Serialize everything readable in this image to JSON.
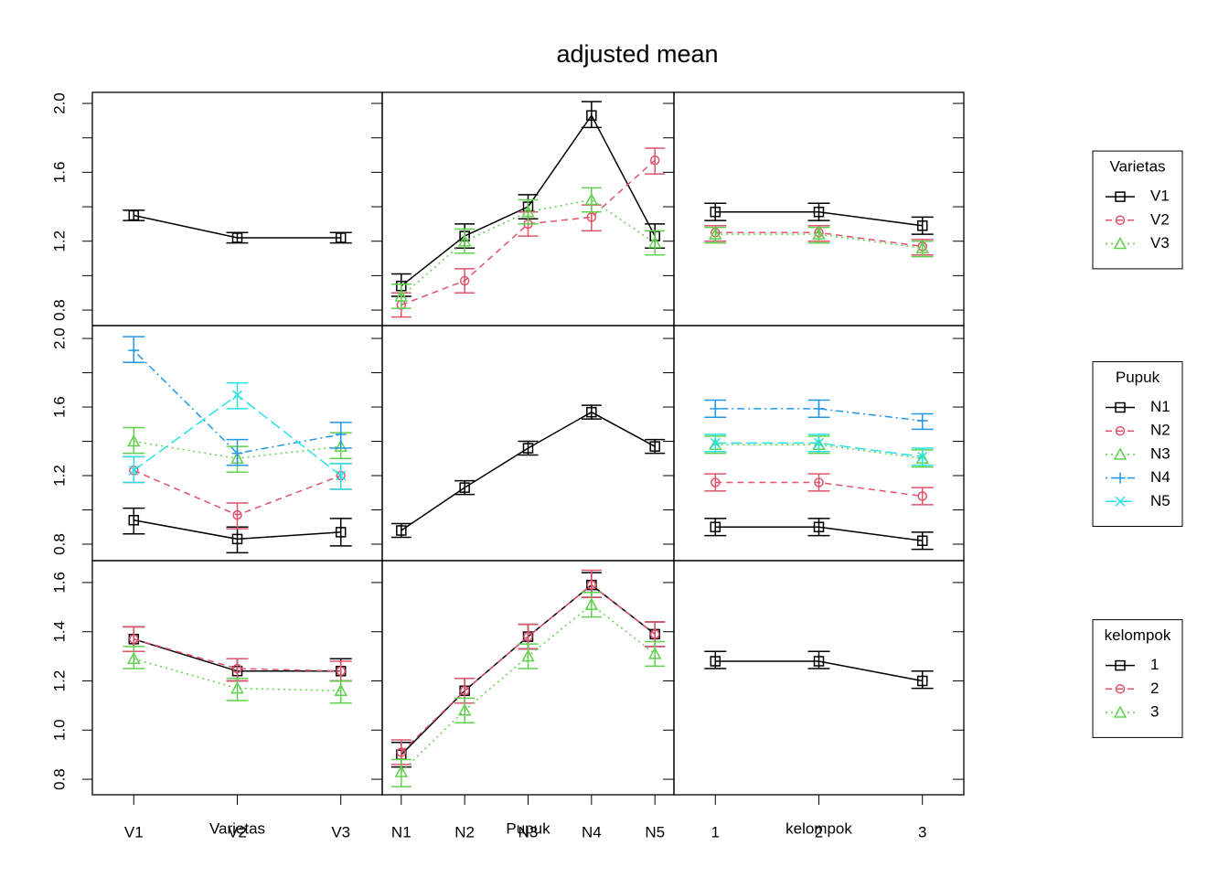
{
  "chart_data": {
    "type": "interaction-matrix",
    "title": "adjusted mean",
    "colors": [
      "#000000",
      "#DF536B",
      "#61D04F",
      "#2297E6",
      "#28E2E5"
    ],
    "factors": [
      {
        "name": "Varietas",
        "levels": [
          "V1",
          "V2",
          "V3"
        ]
      },
      {
        "name": "Pupuk",
        "levels": [
          "N1",
          "N2",
          "N3",
          "N4",
          "N5"
        ]
      },
      {
        "name": "kelompok",
        "levels": [
          "1",
          "2",
          "3"
        ]
      }
    ],
    "rows": [
      {
        "ylim": [
          0.71,
          2.064
        ],
        "yticks": [
          0.8,
          1.2,
          1.6,
          {
            "value": 2,
            "label": "2.0"
          }
        ],
        "minor_yticks": [
          1,
          1.4,
          1.8
        ],
        "panels": [
          {
            "series": [
              {
                "values": [
                  1.35,
                  1.22,
                  1.22
                ],
                "lower": [
                  1.32,
                  1.19,
                  1.19
                ],
                "upper": [
                  1.38,
                  1.25,
                  1.25
                ]
              }
            ]
          },
          {
            "series": [
              {
                "values": [
                  0.94,
                  1.23,
                  1.4,
                  1.93,
                  1.23
                ],
                "lower": [
                  0.88,
                  1.16,
                  1.33,
                  1.86,
                  1.16
                ],
                "upper": [
                  1.01,
                  1.3,
                  1.47,
                  2.01,
                  1.3
                ]
              },
              {
                "values": [
                  0.83,
                  0.97,
                  1.3,
                  1.34,
                  1.67
                ],
                "lower": [
                  0.76,
                  0.9,
                  1.23,
                  1.26,
                  1.59
                ],
                "upper": [
                  0.9,
                  1.04,
                  1.37,
                  1.41,
                  1.74
                ]
              },
              {
                "values": [
                  0.88,
                  1.2,
                  1.37,
                  1.44,
                  1.19
                ],
                "lower": [
                  0.81,
                  1.13,
                  1.3,
                  1.37,
                  1.12
                ],
                "upper": [
                  0.95,
                  1.27,
                  1.44,
                  1.51,
                  1.26
                ]
              }
            ]
          },
          {
            "series": [
              {
                "values": [
                  1.37,
                  1.37,
                  1.29
                ],
                "lower": [
                  1.32,
                  1.32,
                  1.24
                ],
                "upper": [
                  1.42,
                  1.42,
                  1.34
                ]
              },
              {
                "values": [
                  1.25,
                  1.25,
                  1.17
                ],
                "lower": [
                  1.2,
                  1.2,
                  1.12
                ],
                "upper": [
                  1.29,
                  1.29,
                  1.21
                ]
              },
              {
                "values": [
                  1.24,
                  1.24,
                  1.16
                ],
                "lower": [
                  1.19,
                  1.19,
                  1.11
                ],
                "upper": [
                  1.28,
                  1.28,
                  1.2
                ]
              }
            ]
          }
        ]
      },
      {
        "ylim": [
          0.704,
          2.075
        ],
        "yticks": [
          0.8,
          1.2,
          1.6,
          {
            "value": 2,
            "label": "2.0"
          }
        ],
        "minor_yticks": [
          1,
          1.4,
          1.8
        ],
        "panels": [
          {
            "series": [
              {
                "values": [
                  0.94,
                  0.83,
                  0.87
                ],
                "lower": [
                  0.86,
                  0.75,
                  0.79
                ],
                "upper": [
                  1.01,
                  0.9,
                  0.95
                ]
              },
              {
                "values": [
                  1.23,
                  0.97,
                  1.2
                ],
                "lower": [
                  1.16,
                  0.89,
                  1.12
                ],
                "upper": [
                  1.31,
                  1.04,
                  1.27
                ]
              },
              {
                "values": [
                  1.4,
                  1.3,
                  1.37
                ],
                "lower": [
                  1.33,
                  1.22,
                  1.3
                ],
                "upper": [
                  1.48,
                  1.37,
                  1.45
                ]
              },
              {
                "values": [
                  1.93,
                  1.33,
                  1.44
                ],
                "lower": [
                  1.86,
                  1.26,
                  1.36
                ],
                "upper": [
                  2.01,
                  1.41,
                  1.51
                ]
              },
              {
                "values": [
                  1.23,
                  1.67,
                  1.2
                ],
                "lower": [
                  1.16,
                  1.59,
                  1.12
                ],
                "upper": [
                  1.31,
                  1.74,
                  1.27
                ]
              }
            ]
          },
          {
            "series": [
              {
                "values": [
                  0.88,
                  1.13,
                  1.36,
                  1.57,
                  1.37
                ],
                "lower": [
                  0.84,
                  1.09,
                  1.32,
                  1.53,
                  1.33
                ],
                "upper": [
                  0.92,
                  1.17,
                  1.4,
                  1.61,
                  1.41
                ]
              }
            ]
          },
          {
            "series": [
              {
                "values": [
                  0.9,
                  0.9,
                  0.82
                ],
                "lower": [
                  0.85,
                  0.85,
                  0.77
                ],
                "upper": [
                  0.95,
                  0.95,
                  0.87
                ]
              },
              {
                "values": [
                  1.16,
                  1.16,
                  1.08
                ],
                "lower": [
                  1.11,
                  1.11,
                  1.03
                ],
                "upper": [
                  1.21,
                  1.21,
                  1.13
                ]
              },
              {
                "values": [
                  1.38,
                  1.38,
                  1.3
                ],
                "lower": [
                  1.33,
                  1.33,
                  1.25
                ],
                "upper": [
                  1.43,
                  1.43,
                  1.35
                ]
              },
              {
                "values": [
                  1.59,
                  1.59,
                  1.52
                ],
                "lower": [
                  1.54,
                  1.54,
                  1.47
                ],
                "upper": [
                  1.64,
                  1.64,
                  1.56
                ]
              },
              {
                "values": [
                  1.39,
                  1.39,
                  1.31
                ],
                "lower": [
                  1.34,
                  1.34,
                  1.26
                ],
                "upper": [
                  1.44,
                  1.44,
                  1.36
                ]
              }
            ]
          }
        ]
      },
      {
        "ylim": [
          0.737,
          1.689
        ],
        "yticks": [
          0.8,
          {
            "value": 1,
            "label": "1.0"
          },
          1.2,
          1.4,
          1.6
        ],
        "minor_yticks": [],
        "panels": [
          {
            "series": [
              {
                "values": [
                  1.37,
                  1.24,
                  1.24
                ],
                "lower": [
                  1.32,
                  1.2,
                  1.2
                ],
                "upper": [
                  1.42,
                  1.29,
                  1.29
                ]
              },
              {
                "values": [
                  1.37,
                  1.25,
                  1.24
                ],
                "lower": [
                  1.32,
                  1.2,
                  1.2
                ],
                "upper": [
                  1.42,
                  1.29,
                  1.28
                ]
              },
              {
                "values": [
                  1.29,
                  1.17,
                  1.16
                ],
                "lower": [
                  1.25,
                  1.12,
                  1.11
                ],
                "upper": [
                  1.34,
                  1.21,
                  1.2
                ]
              }
            ]
          },
          {
            "series": [
              {
                "values": [
                  0.9,
                  1.16,
                  1.38,
                  1.59,
                  1.39
                ],
                "lower": [
                  0.85,
                  1.11,
                  1.33,
                  1.54,
                  1.34
                ],
                "upper": [
                  0.95,
                  1.21,
                  1.43,
                  1.64,
                  1.44
                ]
              },
              {
                "values": [
                  0.91,
                  1.16,
                  1.38,
                  1.59,
                  1.39
                ],
                "lower": [
                  0.86,
                  1.11,
                  1.33,
                  1.54,
                  1.34
                ],
                "upper": [
                  0.96,
                  1.21,
                  1.43,
                  1.65,
                  1.44
                ]
              },
              {
                "values": [
                  0.83,
                  1.08,
                  1.3,
                  1.51,
                  1.31
                ],
                "lower": [
                  0.77,
                  1.03,
                  1.25,
                  1.46,
                  1.26
                ],
                "upper": [
                  0.88,
                  1.13,
                  1.35,
                  1.56,
                  1.36
                ]
              }
            ]
          },
          {
            "series": [
              {
                "values": [
                  1.28,
                  1.28,
                  1.2
                ],
                "lower": [
                  1.25,
                  1.25,
                  1.17
                ],
                "upper": [
                  1.32,
                  1.32,
                  1.24
                ]
              }
            ]
          }
        ]
      }
    ]
  }
}
